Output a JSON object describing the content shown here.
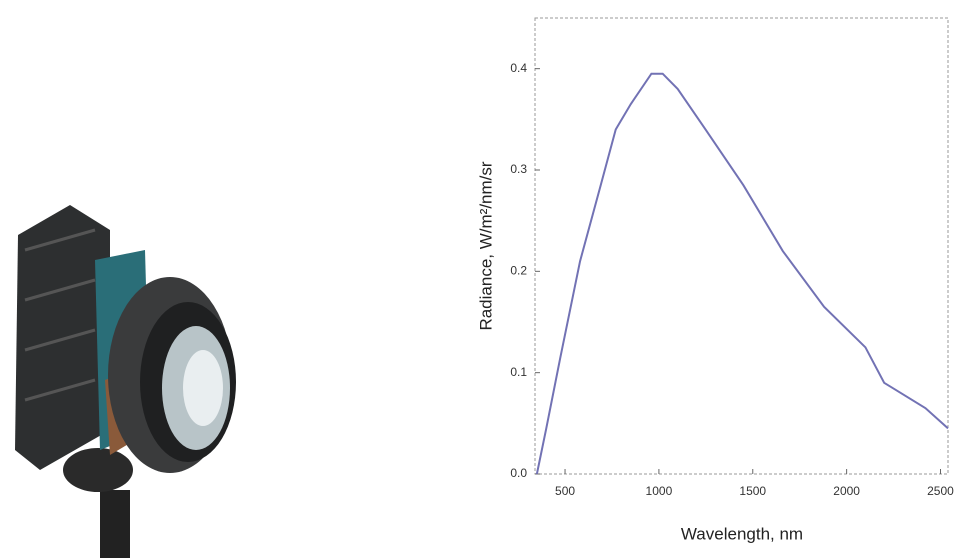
{
  "chart_data": {
    "type": "line",
    "xlabel": "Wavelength, nm",
    "ylabel": "Radiance, W/m²/nm/sr",
    "x": [
      350,
      400,
      475,
      580,
      690,
      770,
      850,
      960,
      1020,
      1100,
      1230,
      1450,
      1660,
      1880,
      2100,
      2200,
      2420,
      2540
    ],
    "series": [
      {
        "color": "#7272b4",
        "values": [
          0.0,
          0.045,
          0.115,
          0.21,
          0.285,
          0.34,
          0.365,
          0.395,
          0.395,
          0.38,
          0.345,
          0.285,
          0.22,
          0.165,
          0.125,
          0.09,
          0.065,
          0.045
        ]
      }
    ],
    "xlim": [
      340,
      2540
    ],
    "ylim": [
      0,
      0.45
    ],
    "xticks": [
      500,
      1000,
      1500,
      2000,
      2500
    ],
    "yticks": [
      {
        "value": 0,
        "label": "0.0"
      },
      0.1,
      0.2,
      0.3,
      0.4
    ]
  }
}
